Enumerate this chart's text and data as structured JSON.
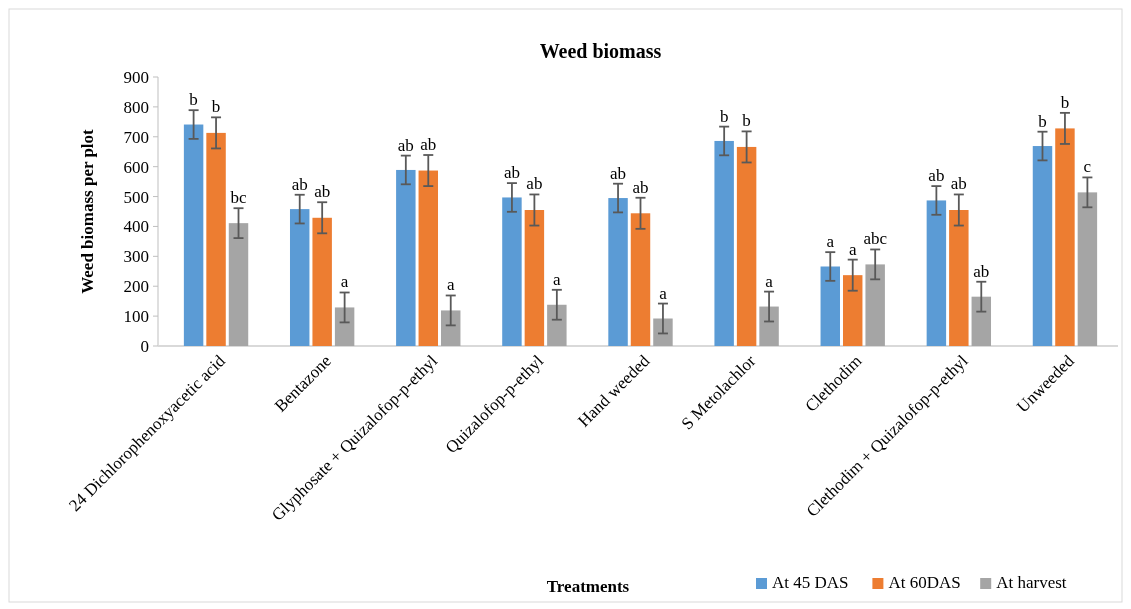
{
  "chart_data": {
    "type": "bar",
    "title": "Weed biomass",
    "xlabel": "Treatments",
    "ylabel": "Weed biomass per plot",
    "categories": [
      "24 Dichlorophenoxyacetic acid",
      "Bentazone",
      "Glyphosate + Quizalofop-p-ethyl",
      "Quizalofop-p-ethyl",
      "Hand weeded",
      "S Metolachlor",
      "Clethodim",
      "Clethodim + Quizalofop-p-ethyl",
      "Unweeded"
    ],
    "series": [
      {
        "name": "At 45 DAS",
        "color": "#5b9bd5",
        "values": [
          741,
          458,
          589,
          497,
          495,
          686,
          266,
          487,
          669
        ],
        "errors": [
          48,
          48,
          48,
          48,
          48,
          48,
          48,
          48,
          48
        ],
        "value_labels": [
          "b",
          "ab",
          "ab",
          "ab",
          "ab",
          "b",
          "a",
          "ab",
          "b"
        ]
      },
      {
        "name": "At 60DAS",
        "color": "#ed7d31",
        "values": [
          713,
          429,
          587,
          455,
          444,
          666,
          237,
          455,
          728
        ],
        "errors": [
          52,
          52,
          52,
          52,
          52,
          52,
          52,
          52,
          52
        ],
        "value_labels": [
          "b",
          "ab",
          "ab",
          "ab",
          "ab",
          "b",
          "a",
          "ab",
          "b"
        ]
      },
      {
        "name": "At harvest",
        "color": "#a5a5a5",
        "values": [
          411,
          129,
          119,
          138,
          92,
          132,
          273,
          165,
          514
        ],
        "errors": [
          50,
          50,
          50,
          50,
          50,
          50,
          50,
          50,
          50
        ],
        "value_labels": [
          "bc",
          "a",
          "a",
          "a",
          "a",
          "a",
          "abc",
          "ab",
          "c"
        ]
      }
    ],
    "ylim": [
      0,
      900
    ],
    "yticks": [
      0,
      100,
      200,
      300,
      400,
      500,
      600,
      700,
      800,
      900
    ],
    "grid": false,
    "legend": "bottom"
  }
}
